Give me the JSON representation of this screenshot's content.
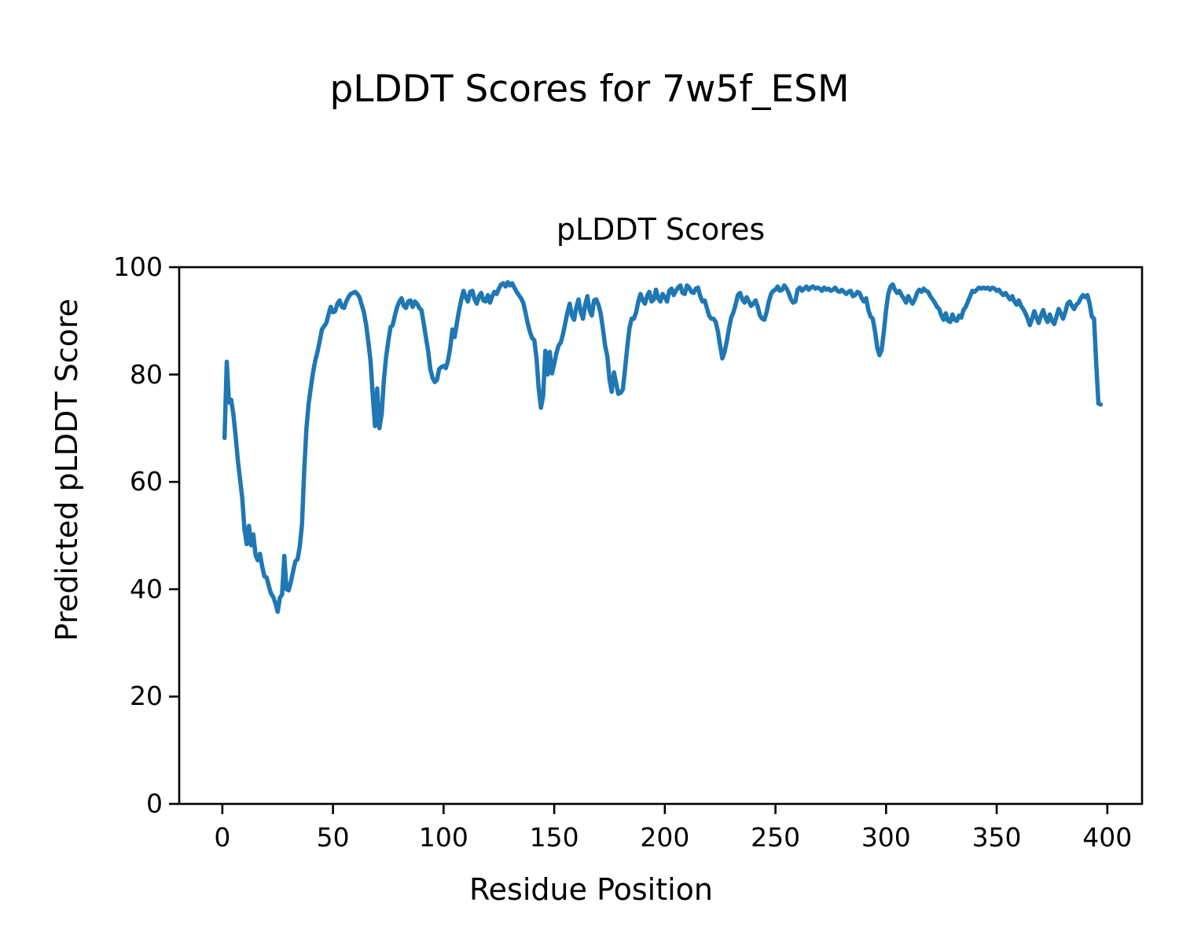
{
  "chart_data": {
    "type": "line",
    "suptitle": "pLDDT Scores for 7w5f_ESM",
    "title": "pLDDT Scores",
    "xlabel": "Residue Position",
    "ylabel": "Predicted pLDDT Score",
    "legend": null,
    "grid": false,
    "xlim": [
      -19.5,
      415.7
    ],
    "ylim": [
      0,
      100
    ],
    "xticks": [
      0,
      50,
      100,
      150,
      200,
      250,
      300,
      350,
      400
    ],
    "yticks": [
      0,
      20,
      40,
      60,
      80,
      100
    ],
    "line_color": "#1f77b4",
    "spine_color": "#000000",
    "text_color": "#000000",
    "series": [
      {
        "name": "pLDDT",
        "x_start": 1,
        "x_step": 1,
        "values": [
          68.2,
          82.4,
          74.8,
          75.3,
          72.5,
          68.5,
          64,
          60.5,
          57,
          51.2,
          48.4,
          51.8,
          48.2,
          50.2,
          46.4,
          45.4,
          46.6,
          44.2,
          42.4,
          42.2,
          40.6,
          39.2,
          38.6,
          37.4,
          35.8,
          38.4,
          39,
          46.2,
          40,
          39.8,
          41.4,
          43.4,
          45.2,
          45.6,
          48,
          52,
          62,
          70,
          74.6,
          77.6,
          80.4,
          82.6,
          84.2,
          86.2,
          88.4,
          89,
          89.6,
          91.2,
          92.6,
          91.6,
          91.8,
          93.2,
          93.8,
          92.6,
          92.4,
          93.6,
          94.4,
          95,
          95.2,
          95.4,
          95,
          94.4,
          93,
          91.6,
          89.2,
          86,
          82.4,
          76,
          70.4,
          77.4,
          70,
          72.6,
          79,
          83.2,
          86.2,
          88.8,
          89.2,
          91,
          92.6,
          93.6,
          94.2,
          92.8,
          92.4,
          93.6,
          93.8,
          92.6,
          93.6,
          93.2,
          92.4,
          92,
          89.6,
          87,
          84.4,
          81,
          79.4,
          78.6,
          79,
          81,
          81.4,
          81.6,
          81.2,
          82.6,
          85,
          88.4,
          87,
          89.6,
          92,
          94,
          95.6,
          94.4,
          93.6,
          95.4,
          95.6,
          94,
          93.2,
          94.6,
          95.2,
          93.8,
          93.6,
          94.8,
          93.4,
          94.6,
          95.4,
          95,
          96,
          96.8,
          97,
          96.4,
          97.2,
          96.6,
          97,
          96.2,
          95.4,
          94.8,
          94.2,
          93.4,
          91.6,
          89.6,
          88,
          86.8,
          86.4,
          83,
          77.4,
          73.8,
          76,
          84.4,
          80,
          84.2,
          80.2,
          82,
          84,
          85.4,
          86,
          87.6,
          89.6,
          91.6,
          93.2,
          91,
          90.2,
          92.6,
          94,
          91.6,
          90.4,
          93,
          94.6,
          92,
          91,
          93.8,
          94,
          93,
          91.4,
          88.6,
          85.4,
          83.4,
          79,
          76.8,
          80.4,
          78.4,
          76.4,
          76.6,
          77.2,
          81,
          85,
          88.6,
          90.4,
          90.4,
          91.6,
          93.6,
          95,
          93.8,
          93.2,
          94.6,
          95.4,
          93.6,
          94,
          95.8,
          94.2,
          93.6,
          95,
          94.4,
          93.6,
          95.6,
          96,
          94.8,
          95.6,
          96.2,
          96.6,
          95.2,
          95,
          96.6,
          96.2,
          95.4,
          95.2,
          96,
          96.2,
          94.6,
          93.6,
          93.8,
          92.4,
          91,
          90.4,
          90.4,
          89.8,
          88,
          85.4,
          83,
          84.2,
          86.2,
          88.6,
          90.6,
          91.6,
          93,
          94.8,
          95.2,
          94,
          93.4,
          94.4,
          93.6,
          92.8,
          93.2,
          93.8,
          92.6,
          91,
          90.4,
          90.2,
          91.6,
          93.6,
          95,
          95.6,
          95.8,
          96.4,
          95.6,
          95.8,
          96.6,
          96,
          95.2,
          94,
          93.4,
          93.6,
          95.8,
          96.2,
          95.6,
          96,
          96.4,
          95.8,
          96.2,
          96.4,
          96,
          96.2,
          96,
          95.6,
          96.2,
          95.8,
          96,
          95.6,
          95.8,
          96.2,
          95.6,
          95.4,
          95.8,
          95.4,
          95,
          95.4,
          95.6,
          94.6,
          94.8,
          95.4,
          95.2,
          94.2,
          93.6,
          94.2,
          92,
          90.8,
          90.4,
          88,
          85,
          83.6,
          84.6,
          88,
          92,
          95,
          96.4,
          96.8,
          95.8,
          95.2,
          95.6,
          94.8,
          94.2,
          93.4,
          94.6,
          93.8,
          93.2,
          94,
          95.2,
          95.8,
          95.4,
          96,
          95.6,
          95.4,
          94.6,
          94,
          93.4,
          92.6,
          92.2,
          91,
          90.2,
          91.4,
          90,
          89.8,
          91.2,
          90.2,
          90,
          91,
          90.6,
          92,
          92.6,
          93.6,
          94.6,
          95.6,
          95.4,
          95.8,
          96.2,
          96,
          96.2,
          96,
          96.2,
          95.8,
          96.2,
          96,
          95.6,
          95.8,
          95.2,
          94.8,
          95.2,
          94.6,
          94,
          94.6,
          93.6,
          93,
          93.8,
          92.8,
          92.2,
          91.4,
          90.4,
          89.2,
          90.4,
          91.8,
          90.6,
          89.6,
          91,
          92,
          90.6,
          89.8,
          91.2,
          90,
          89.4,
          90.8,
          92.2,
          91.4,
          90.4,
          91.6,
          93.2,
          93.6,
          92.8,
          92.2,
          93,
          93.4,
          94.2,
          94.8,
          94.4,
          94.8,
          93.2,
          90.8,
          90.4,
          82,
          74.6,
          74.4
        ]
      }
    ]
  }
}
